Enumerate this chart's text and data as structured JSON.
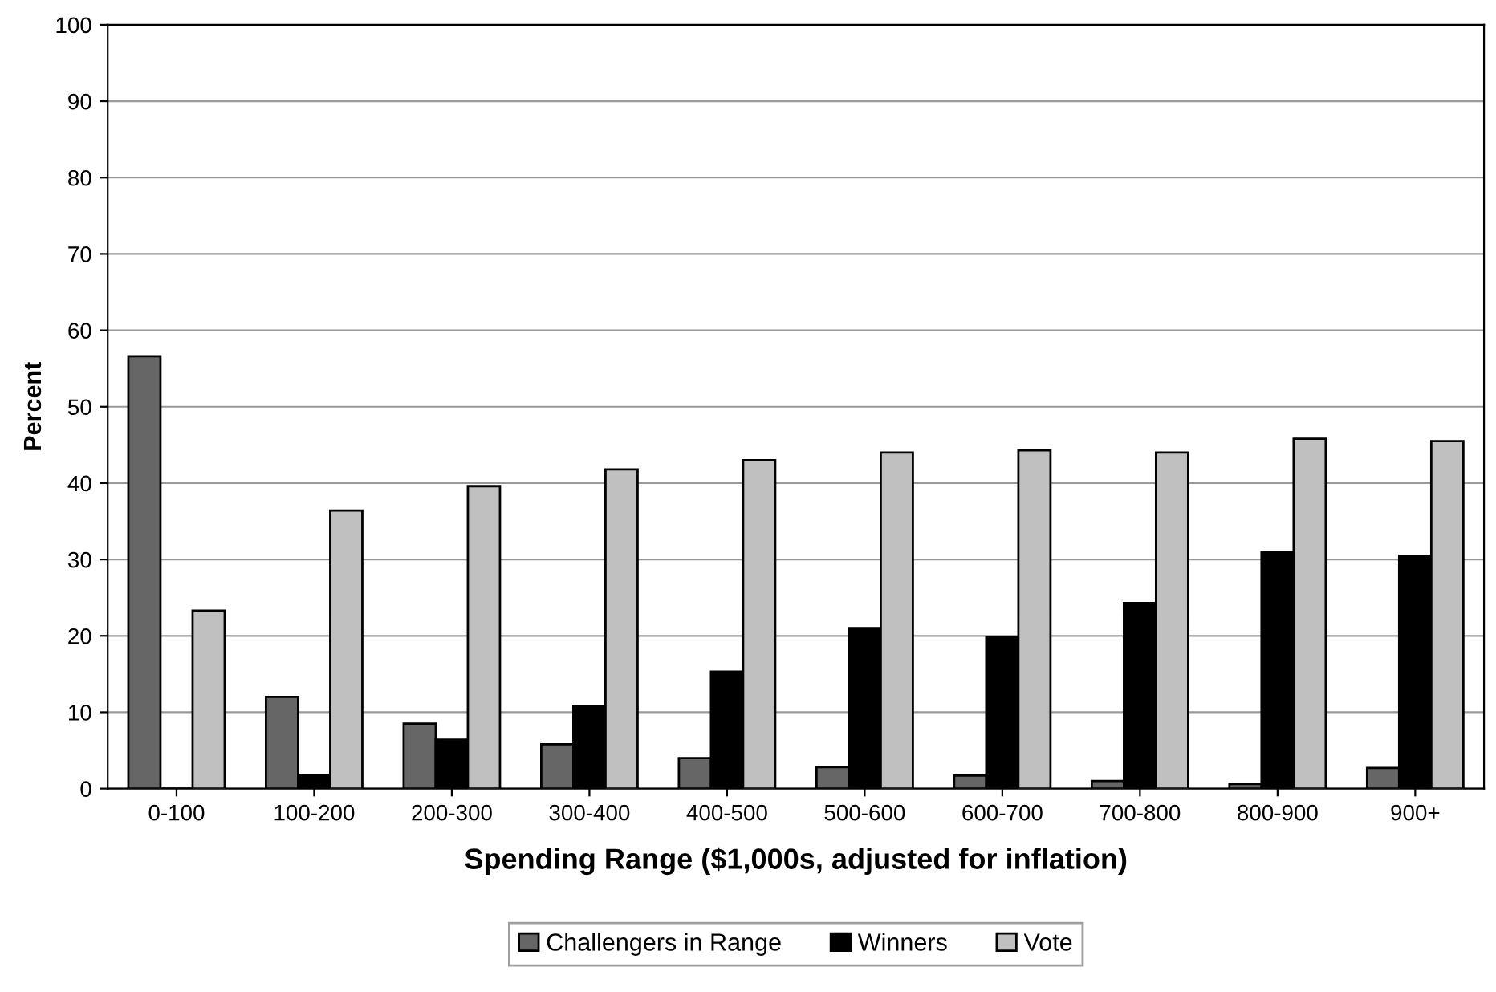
{
  "chart_data": {
    "type": "bar",
    "xlabel": "Spending Range ($1,000s, adjusted for inflation)",
    "ylabel": "Percent",
    "categories": [
      "0-100",
      "100-200",
      "200-300",
      "300-400",
      "400-500",
      "500-600",
      "600-700",
      "700-800",
      "800-900",
      "900+"
    ],
    "series": [
      {
        "name": "Challengers in Range",
        "color": "#666666",
        "values": [
          56.6,
          12,
          8.5,
          5.8,
          4,
          2.8,
          1.7,
          1,
          0.6,
          2.7
        ]
      },
      {
        "name": "Winners",
        "color": "#000000",
        "values": [
          0,
          1.8,
          6.4,
          10.8,
          15.3,
          21,
          19.8,
          24.3,
          31,
          30.5
        ]
      },
      {
        "name": "Vote",
        "color": "#c0c0c0",
        "values": [
          23.3,
          36.4,
          39.6,
          41.8,
          43,
          44,
          44.3,
          44,
          45.8,
          45.5
        ]
      }
    ],
    "ylim": [
      0,
      100
    ],
    "yticks": [
      0,
      10,
      20,
      30,
      40,
      50,
      60,
      70,
      80,
      90,
      100
    ],
    "grid": "y",
    "legend": "bottom"
  }
}
